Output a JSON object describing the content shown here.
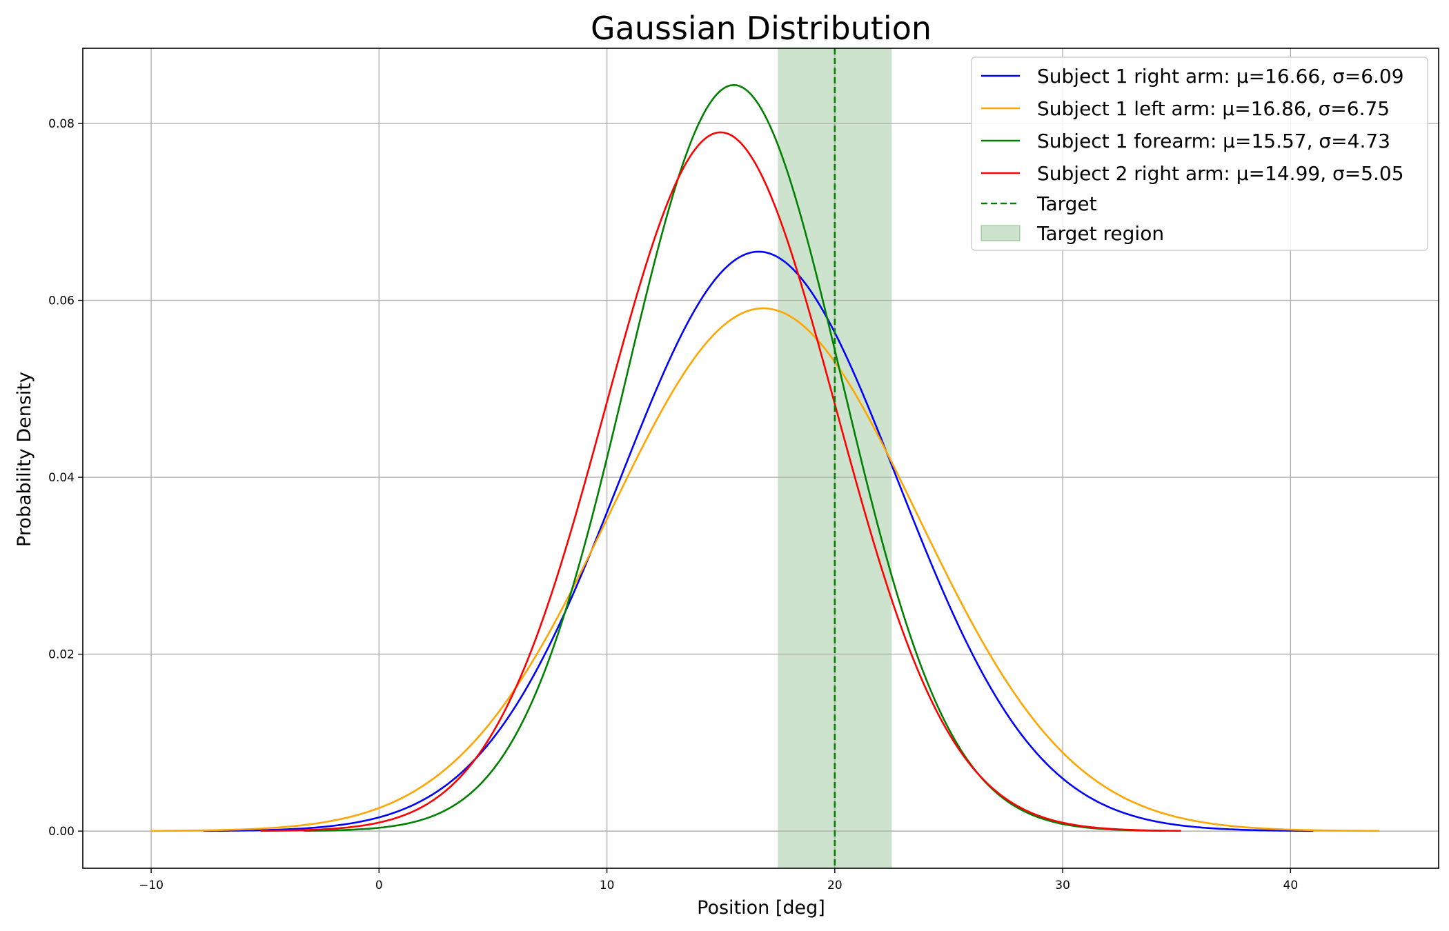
{
  "chart_data": {
    "type": "line",
    "title": "Gaussian Distribution",
    "xlabel": "Position [deg]",
    "ylabel": "Probability Density",
    "xlim": [
      -13.0,
      46.5
    ],
    "ylim": [
      -0.0042,
      0.0885
    ],
    "xticks": [
      -10,
      0,
      10,
      20,
      30,
      40
    ],
    "xtick_labels": [
      "−10",
      "0",
      "10",
      "20",
      "30",
      "40"
    ],
    "yticks": [
      0.0,
      0.02,
      0.04,
      0.06,
      0.08
    ],
    "ytick_labels": [
      "0.00",
      "0.02",
      "0.04",
      "0.06",
      "0.08"
    ],
    "grid": true,
    "legend_position": "top-right",
    "series": [
      {
        "name": "Subject 1 right arm: μ=16.66, σ=6.09",
        "mu": 16.66,
        "sigma": 6.09,
        "x_range": [
          -7.7,
          41.0
        ],
        "color": "#0000ff"
      },
      {
        "name": "Subject 1 left arm: μ=16.86, σ=6.75",
        "mu": 16.86,
        "sigma": 6.75,
        "x_range": [
          -10.0,
          43.9
        ],
        "color": "#ffa500"
      },
      {
        "name": "Subject 1 forearm: μ=15.57, σ=4.73",
        "mu": 15.57,
        "sigma": 4.73,
        "x_range": [
          -3.3,
          34.5
        ],
        "color": "#008000"
      },
      {
        "name": "Subject 2 right arm: μ=14.99, σ=5.05",
        "mu": 14.99,
        "sigma": 5.05,
        "x_range": [
          -5.2,
          35.2
        ],
        "color": "#ff0000"
      }
    ],
    "target": {
      "name": "Target",
      "x": 20,
      "color": "#008000"
    },
    "target_region": {
      "name": "Target region",
      "x_range": [
        17.5,
        22.5
      ],
      "color": "#2e8b2e"
    }
  }
}
